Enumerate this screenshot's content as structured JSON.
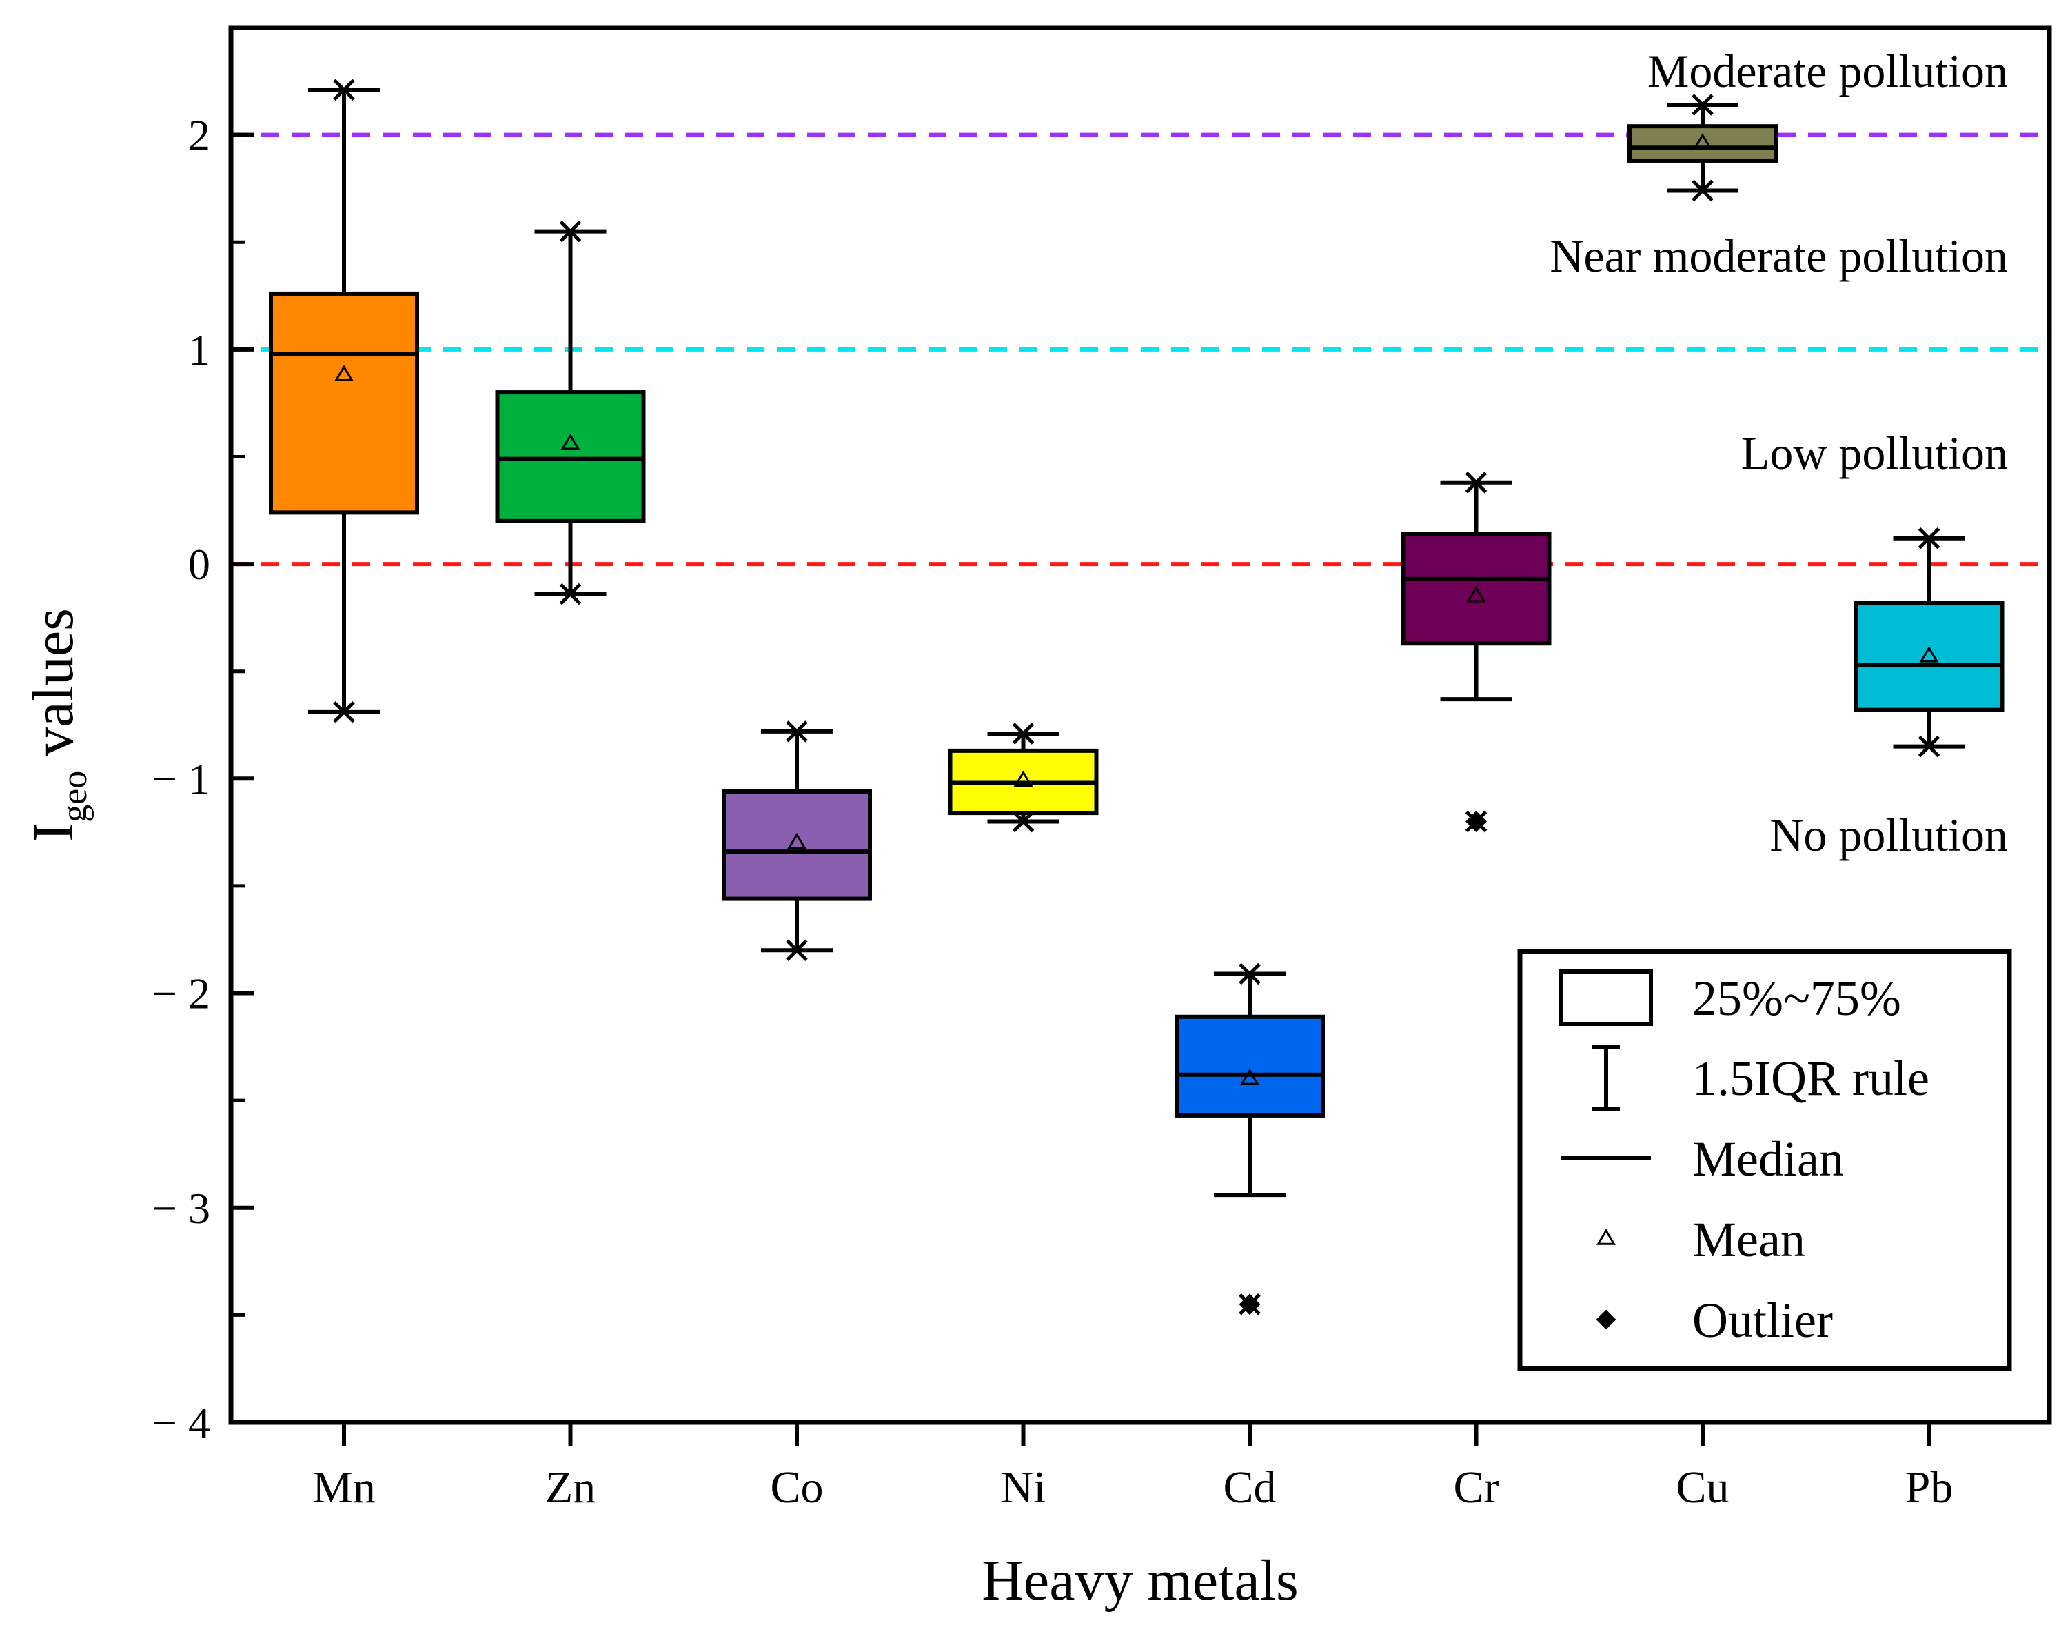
{
  "chart_data": {
    "type": "box",
    "xlabel": "Heavy metals",
    "ylabel": {
      "main": "I",
      "sub": "geo",
      "rest": "values"
    },
    "ylim": [
      -4,
      2.5
    ],
    "yticks": [
      {
        "value": 2,
        "label": "2"
      },
      {
        "value": 1,
        "label": "1"
      },
      {
        "value": 0,
        "label": "0"
      },
      {
        "value": -1,
        "label": "− 1"
      },
      {
        "value": -2,
        "label": "− 2"
      },
      {
        "value": -3,
        "label": "− 3"
      },
      {
        "value": -4,
        "label": "− 4"
      }
    ],
    "categories": [
      "Mn",
      "Zn",
      "Co",
      "Ni",
      "Cd",
      "Cr",
      "Cu",
      "Pb"
    ],
    "boxes": [
      {
        "name": "Mn",
        "color": "#FF8800",
        "q1": 0.24,
        "median": 0.98,
        "q3": 1.26,
        "mean": 0.88,
        "whisker_low": -0.69,
        "whisker_high": 2.21,
        "low_cap_cross": true,
        "high_cap_cross": true,
        "outliers": []
      },
      {
        "name": "Zn",
        "color": "#00B140",
        "q1": 0.2,
        "median": 0.49,
        "q3": 0.8,
        "mean": 0.56,
        "whisker_low": -0.14,
        "whisker_high": 1.55,
        "low_cap_cross": true,
        "high_cap_cross": true,
        "outliers": []
      },
      {
        "name": "Co",
        "color": "#8B5FAF",
        "q1": -1.56,
        "median": -1.34,
        "q3": -1.06,
        "mean": -1.3,
        "whisker_low": -1.8,
        "whisker_high": -0.78,
        "low_cap_cross": true,
        "high_cap_cross": true,
        "outliers": []
      },
      {
        "name": "Ni",
        "color": "#FFFF00",
        "q1": -1.16,
        "median": -1.02,
        "q3": -0.87,
        "mean": -1.01,
        "whisker_low": -1.2,
        "whisker_high": -0.79,
        "low_cap_cross": true,
        "high_cap_cross": true,
        "outliers": []
      },
      {
        "name": "Cd",
        "color": "#0066EE",
        "q1": -2.57,
        "median": -2.38,
        "q3": -2.11,
        "mean": -2.4,
        "whisker_low": -2.94,
        "whisker_high": -1.91,
        "low_cap_cross": false,
        "high_cap_cross": true,
        "outliers": [
          -3.45
        ]
      },
      {
        "name": "Cr",
        "color": "#6E0058",
        "q1": -0.37,
        "median": -0.07,
        "q3": 0.14,
        "mean": -0.15,
        "whisker_low": -0.63,
        "whisker_high": 0.38,
        "low_cap_cross": false,
        "high_cap_cross": true,
        "outliers": [
          -1.2
        ]
      },
      {
        "name": "Cu",
        "color": "#7F7F50",
        "q1": 1.88,
        "median": 1.94,
        "q3": 2.04,
        "mean": 1.96,
        "whisker_low": 1.74,
        "whisker_high": 2.14,
        "low_cap_cross": true,
        "high_cap_cross": true,
        "outliers": []
      },
      {
        "name": "Pb",
        "color": "#00BCD4",
        "q1": -0.68,
        "median": -0.47,
        "q3": -0.18,
        "mean": -0.43,
        "whisker_low": -0.85,
        "whisker_high": 0.12,
        "low_cap_cross": true,
        "high_cap_cross": true,
        "outliers": []
      }
    ],
    "reference_lines": [
      {
        "y": 2,
        "color": "#9B30FF"
      },
      {
        "y": 1,
        "color": "#00E5EE"
      },
      {
        "y": 0,
        "color": "#FF1A1A"
      }
    ],
    "zone_labels": [
      {
        "text": "Moderate pollution",
        "y": 2.3
      },
      {
        "text": "Near moderate pollution",
        "y": 1.44
      },
      {
        "text": "Low pollution",
        "y": 0.52
      },
      {
        "text": "No pollution",
        "y": -1.26
      }
    ],
    "legend": {
      "position": "bottom-right",
      "items": [
        {
          "symbol": "box",
          "label": "25%~75%"
        },
        {
          "symbol": "whisker",
          "label": "1.5IQR rule"
        },
        {
          "symbol": "line",
          "label": "Median"
        },
        {
          "symbol": "triangle",
          "label": "Mean"
        },
        {
          "symbol": "diamond",
          "label": "Outlier"
        }
      ]
    },
    "grid": false
  }
}
